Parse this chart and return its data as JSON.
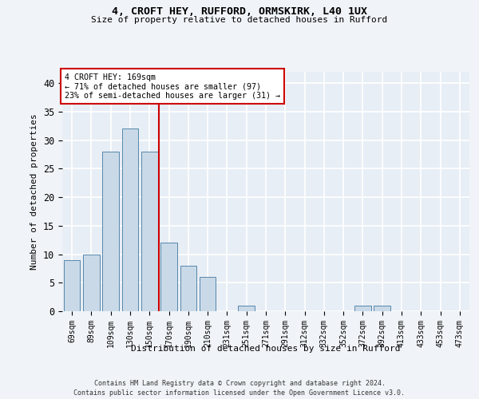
{
  "title": "4, CROFT HEY, RUFFORD, ORMSKIRK, L40 1UX",
  "subtitle": "Size of property relative to detached houses in Rufford",
  "xlabel": "Distribution of detached houses by size in Rufford",
  "ylabel": "Number of detached properties",
  "bar_labels": [
    "69sqm",
    "89sqm",
    "109sqm",
    "130sqm",
    "150sqm",
    "170sqm",
    "190sqm",
    "210sqm",
    "231sqm",
    "251sqm",
    "271sqm",
    "291sqm",
    "312sqm",
    "332sqm",
    "352sqm",
    "372sqm",
    "392sqm",
    "413sqm",
    "433sqm",
    "453sqm",
    "473sqm"
  ],
  "bar_values": [
    9,
    10,
    28,
    32,
    28,
    12,
    8,
    6,
    0,
    1,
    0,
    0,
    0,
    0,
    0,
    1,
    1,
    0,
    0,
    0,
    0
  ],
  "bar_color": "#c9d9e8",
  "bar_edge_color": "#5588aa",
  "property_line_label": "4 CROFT HEY: 169sqm",
  "annotation_line1": "← 71% of detached houses are smaller (97)",
  "annotation_line2": "23% of semi-detached houses are larger (31) →",
  "annotation_box_color": "#ffffff",
  "annotation_box_edge": "#cc0000",
  "vline_color": "#cc0000",
  "ylim": [
    0,
    42
  ],
  "yticks": [
    0,
    5,
    10,
    15,
    20,
    25,
    30,
    35,
    40
  ],
  "bg_color": "#e8eef5",
  "grid_color": "#ffffff",
  "footer1": "Contains HM Land Registry data © Crown copyright and database right 2024.",
  "footer2": "Contains public sector information licensed under the Open Government Licence v3.0.",
  "fig_bg": "#f0f4f8"
}
